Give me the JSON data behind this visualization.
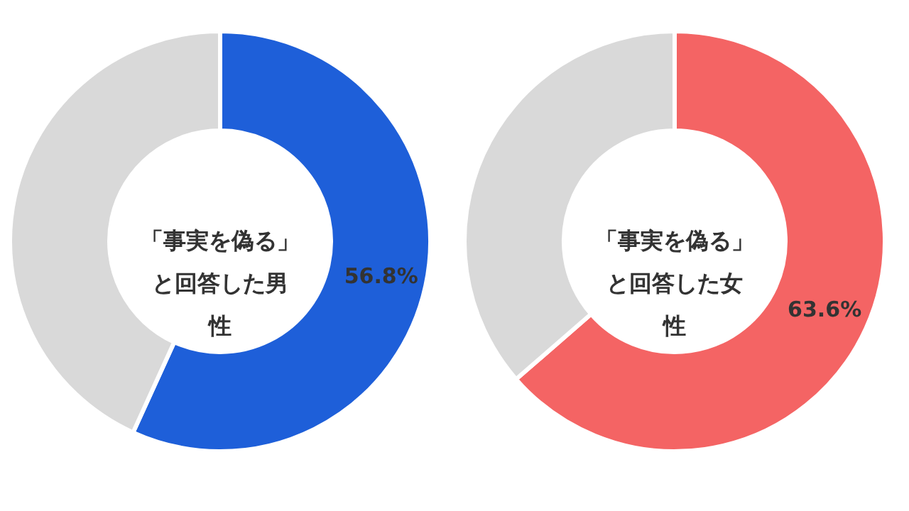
{
  "chart_data": [
    {
      "type": "donut",
      "title": "「事実を偽る」と回答した男性",
      "categories": [
        null,
        null
      ],
      "values": [
        56.8,
        43.2
      ],
      "colors": [
        "#1e5fd9",
        "#d9d9d9"
      ],
      "value_labels": [
        "56.8%",
        null
      ]
    },
    {
      "type": "donut",
      "title": "「事実を偽る」と回答した女性",
      "categories": [
        null,
        null
      ],
      "values": [
        63.6,
        36.4
      ],
      "colors": [
        "#f46464",
        "#d9d9d9"
      ],
      "value_labels": [
        "63.6%",
        null
      ]
    }
  ]
}
